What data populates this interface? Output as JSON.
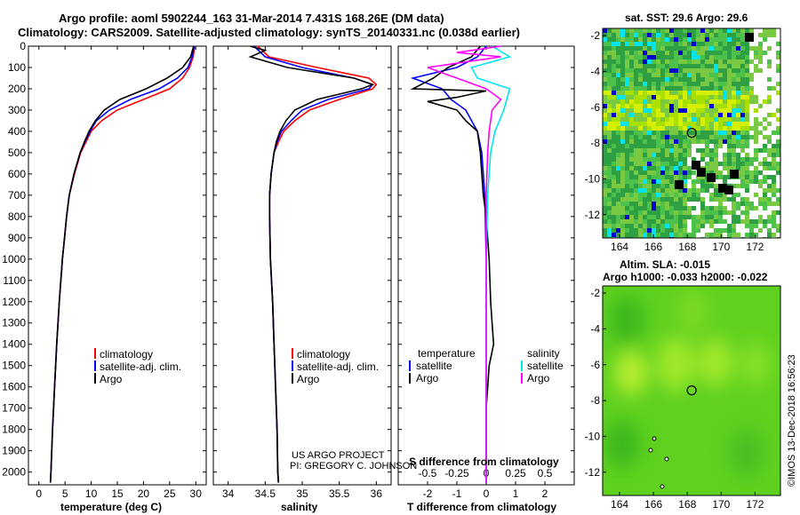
{
  "header": {
    "line1": "Argo profile: aoml 5902244_163 31-Mar-2014 7.431S 168.26E (DM data)",
    "line2": "Climatology: CARS2009. Satellite-adjusted climatology: synTS_20140331.nc (0.038d earlier)"
  },
  "colors": {
    "climatology": "#ff0000",
    "satellite": "#0000ff",
    "argo": "#000000",
    "argo_s": "#ff00ff",
    "sat_s": "#00e5ee"
  },
  "chart_data": [
    {
      "type": "line",
      "id": "temperature",
      "xlabel": "temperature (deg C)",
      "xlim": [
        -2,
        32
      ],
      "ylim": [
        2060,
        0
      ],
      "xticks": [
        0,
        5,
        10,
        15,
        20,
        25,
        30
      ],
      "yticks": [
        0,
        100,
        200,
        300,
        400,
        500,
        600,
        700,
        800,
        900,
        1000,
        1100,
        1200,
        1300,
        1400,
        1500,
        1600,
        1700,
        1800,
        1900,
        2000
      ],
      "legend": [
        "climatology",
        "satellite-adj. clim.",
        "Argo"
      ],
      "series": [
        {
          "name": "climatology",
          "color": "#ff0000",
          "depth": [
            0,
            50,
            100,
            150,
            200,
            250,
            300,
            350,
            400,
            450,
            500,
            600,
            700,
            800,
            900,
            1000,
            1200,
            1400,
            1600,
            1800,
            2000,
            2050
          ],
          "values": [
            29.8,
            29.5,
            28.8,
            27.5,
            25.0,
            20.0,
            15.0,
            12.0,
            10.0,
            9.0,
            8.0,
            6.8,
            5.8,
            5.3,
            4.9,
            4.5,
            3.9,
            3.4,
            3.0,
            2.6,
            2.3,
            2.2
          ]
        },
        {
          "name": "satellite-adj. clim.",
          "color": "#0000ff",
          "depth": [
            0,
            50,
            100,
            150,
            200,
            250,
            300,
            350,
            400,
            450,
            500,
            600,
            700,
            800,
            900,
            1000,
            1200,
            1400,
            1600,
            1800,
            2000,
            2050
          ],
          "values": [
            29.7,
            29.3,
            28.5,
            26.5,
            23.0,
            17.5,
            13.5,
            11.0,
            9.8,
            8.8,
            7.9,
            6.7,
            5.8,
            5.3,
            4.9,
            4.5,
            3.9,
            3.4,
            3.0,
            2.6,
            2.3,
            2.2
          ]
        },
        {
          "name": "Argo",
          "color": "#000000",
          "depth": [
            0,
            50,
            100,
            150,
            200,
            250,
            300,
            350,
            400,
            450,
            500,
            600,
            700,
            800,
            900,
            1000,
            1200,
            1400,
            1600,
            1800,
            2000,
            2050
          ],
          "values": [
            29.6,
            29.0,
            27.5,
            24.5,
            20.5,
            15.5,
            12.5,
            10.8,
            9.6,
            8.7,
            7.9,
            6.7,
            5.8,
            5.3,
            4.9,
            4.5,
            3.9,
            3.4,
            3.0,
            2.6,
            2.3,
            2.2
          ]
        }
      ]
    },
    {
      "type": "line",
      "id": "salinity",
      "xlabel": "salinity",
      "xlim": [
        33.8,
        36.2
      ],
      "ylim": [
        2060,
        0
      ],
      "xticks": [
        34,
        34.5,
        35,
        35.5,
        36
      ],
      "legend": [
        "climatology",
        "satellite-adj. clim.",
        "Argo"
      ],
      "series": [
        {
          "name": "climatology",
          "color": "#ff0000",
          "depth": [
            0,
            50,
            100,
            150,
            180,
            200,
            250,
            300,
            350,
            400,
            450,
            500,
            600,
            700,
            800,
            1000,
            1200,
            1400,
            1600,
            1800,
            2000,
            2050
          ],
          "values": [
            34.4,
            34.55,
            35.2,
            35.9,
            36.0,
            35.95,
            35.5,
            35.1,
            34.9,
            34.75,
            34.68,
            34.62,
            34.58,
            34.56,
            34.56,
            34.57,
            34.6,
            34.62,
            34.64,
            34.66,
            34.67,
            34.68
          ]
        },
        {
          "name": "satellite-adj. clim.",
          "color": "#0000ff",
          "depth": [
            0,
            50,
            100,
            150,
            180,
            200,
            250,
            300,
            350,
            400,
            450,
            500,
            600,
            700,
            800,
            1000,
            1200,
            1400,
            1600,
            1800,
            2000,
            2050
          ],
          "values": [
            34.35,
            34.5,
            35.0,
            35.7,
            35.95,
            35.9,
            35.35,
            35.0,
            34.85,
            34.72,
            34.66,
            34.62,
            34.58,
            34.56,
            34.56,
            34.57,
            34.6,
            34.62,
            34.64,
            34.66,
            34.67,
            34.68
          ]
        },
        {
          "name": "Argo",
          "color": "#000000",
          "depth": [
            0,
            20,
            50,
            100,
            150,
            180,
            200,
            250,
            300,
            350,
            400,
            450,
            500,
            600,
            700,
            800,
            1000,
            1200,
            1400,
            1600,
            1800,
            2000,
            2050
          ],
          "values": [
            34.3,
            34.5,
            34.3,
            34.8,
            35.7,
            35.95,
            35.8,
            35.2,
            34.9,
            34.78,
            34.7,
            34.65,
            34.62,
            34.58,
            34.56,
            34.56,
            34.57,
            34.6,
            34.62,
            34.64,
            34.66,
            34.67,
            34.68
          ]
        }
      ]
    },
    {
      "type": "line",
      "id": "differences",
      "xlabel": "T difference from climatology",
      "x2label": "S difference from climatology",
      "xlim": [
        -3,
        3
      ],
      "ylim": [
        2060,
        0
      ],
      "xticks": [
        -2,
        -1,
        0,
        1,
        2
      ],
      "x2ticks": [
        "-0.5",
        "-0.25",
        "0",
        "0.25",
        "0.5"
      ],
      "legend_left": {
        "title": "temperature",
        "items": [
          "satellite",
          "Argo"
        ]
      },
      "legend_right": {
        "title": "salinity",
        "items": [
          "satellite",
          "Argo"
        ]
      },
      "series": [
        {
          "name": "satellite",
          "quantity": "temperature",
          "color": "#0000ff",
          "depth": [
            0,
            50,
            100,
            150,
            200,
            250,
            300,
            400,
            500,
            700,
            1000,
            2050
          ],
          "values": [
            0,
            -0.3,
            -1.0,
            -2.5,
            -1.5,
            -1.2,
            -0.7,
            -0.3,
            -0.15,
            -0.05,
            0,
            0
          ]
        },
        {
          "name": "Argo",
          "quantity": "temperature",
          "color": "#000000",
          "depth": [
            0,
            50,
            100,
            150,
            200,
            210,
            240,
            260,
            300,
            350,
            400,
            500,
            600,
            700,
            800,
            900,
            1000,
            1200,
            1300,
            1400,
            1500,
            1700,
            2050
          ],
          "values": [
            -0.2,
            -0.5,
            -1.3,
            -1.8,
            -2.5,
            0,
            -1.0,
            -2.0,
            -1.0,
            -0.7,
            -0.3,
            -0.2,
            -0.15,
            -0.1,
            0,
            0.05,
            0.1,
            0.15,
            0.2,
            0.25,
            0.1,
            0,
            0
          ]
        },
        {
          "name": "satellite",
          "quantity": "salinity",
          "color": "#00e5ee",
          "depth": [
            0,
            50,
            100,
            150,
            200,
            300,
            400,
            500,
            700,
            1000,
            1500,
            2050
          ],
          "values": [
            0.2,
            0.8,
            -0.5,
            -0.3,
            0.8,
            0.6,
            0.3,
            0.15,
            0.05,
            0,
            0,
            0
          ]
        },
        {
          "name": "Argo",
          "quantity": "salinity",
          "color": "#ff00ff",
          "depth": [
            0,
            30,
            50,
            100,
            150,
            200,
            250,
            300,
            400,
            500,
            700,
            1000,
            2050
          ],
          "values": [
            0.5,
            -1.0,
            0.5,
            -2.0,
            -1.0,
            0,
            0.5,
            0.2,
            0.1,
            0.05,
            0,
            0,
            0
          ]
        }
      ]
    },
    {
      "type": "heatmap",
      "id": "sst-map",
      "title": "sat. SST: 29.6 Argo: 29.6",
      "xlim": [
        163,
        173.5
      ],
      "ylim": [
        -13.3,
        -1.6
      ],
      "xticks": [
        164,
        166,
        168,
        170,
        172
      ],
      "yticks": [
        -2,
        -4,
        -6,
        -8,
        -10,
        -12
      ],
      "marker": {
        "lon": 168.26,
        "lat": -7.431
      }
    },
    {
      "type": "heatmap",
      "id": "sla-map",
      "title": "Altim. SLA: -0.015",
      "subtitle": "Argo h1000: -0.033 h2000: -0.022",
      "xlim": [
        163,
        173.5
      ],
      "ylim": [
        -13.3,
        -1.6
      ],
      "xticks": [
        164,
        166,
        168,
        170,
        172
      ],
      "yticks": [
        -2,
        -4,
        -6,
        -8,
        -10,
        -12
      ],
      "marker": {
        "lon": 168.26,
        "lat": -7.431
      }
    }
  ],
  "credits": {
    "project": "US ARGO PROJECT",
    "pi": "PI: GREGORY C. JOHNSON",
    "stamp": "©IMOS 13-Dec-2018 16:56:23"
  }
}
